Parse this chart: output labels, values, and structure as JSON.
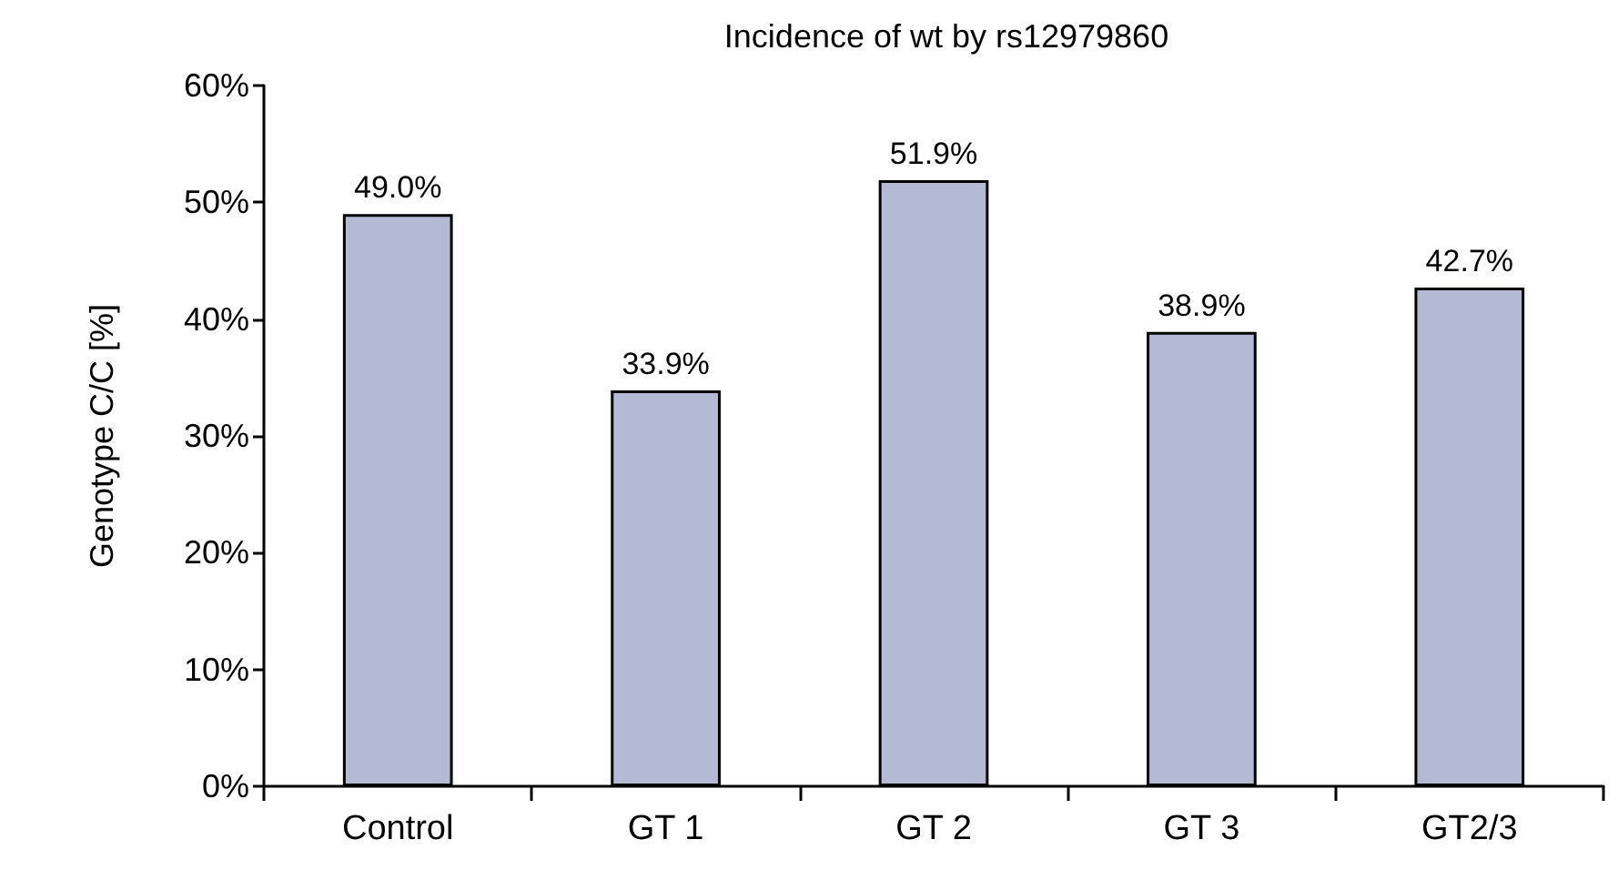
{
  "chart_data": {
    "type": "bar",
    "title": "Incidence of wt by rs12979860",
    "ylabel": "Genotype C/C [%]",
    "categories": [
      "Control",
      "GT 1",
      "GT 2",
      "GT 3",
      "GT2/3"
    ],
    "values": [
      49.0,
      33.9,
      51.9,
      38.9,
      42.7
    ],
    "value_labels": [
      "49.0%",
      "33.9%",
      "51.9%",
      "38.9%",
      "42.7%"
    ],
    "color": "#b4b9d4",
    "ylim": [
      0,
      60
    ],
    "yticks": [
      {
        "value": 0,
        "label": "0%"
      },
      {
        "value": 10,
        "label": "10%"
      },
      {
        "value": 20,
        "label": "20%"
      },
      {
        "value": 30,
        "label": "30%"
      },
      {
        "value": 40,
        "label": "40%"
      },
      {
        "value": 50,
        "label": "50%"
      },
      {
        "value": 60,
        "label": "60%"
      }
    ],
    "grid": false
  }
}
